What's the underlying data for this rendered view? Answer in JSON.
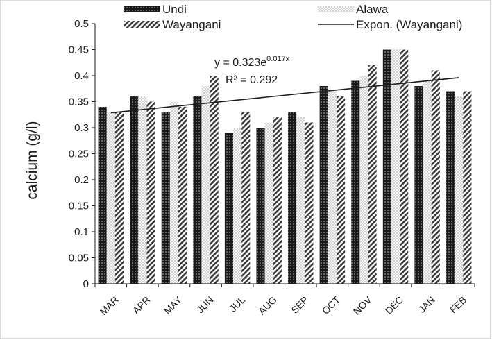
{
  "chart_data": {
    "type": "bar",
    "ylabel": "calcium (g/l)",
    "xlabel": "",
    "ylim": [
      0,
      0.5
    ],
    "yticks": [
      0,
      0.05,
      0.1,
      0.15,
      0.2,
      0.25,
      0.3,
      0.35,
      0.4,
      0.45,
      0.5
    ],
    "ytick_labels": [
      "0",
      "0.05",
      "0.1",
      "0.15",
      "0.2",
      "0.25",
      "0.3",
      "0.35",
      "0.4",
      "0.45",
      "0.5"
    ],
    "grid": false,
    "legend_position": "top",
    "categories": [
      "MAR",
      "APR",
      "MAY",
      "JUN",
      "JUL",
      "AUG",
      "SEP",
      "OCT",
      "NOV",
      "DEC",
      "JAN",
      "FEB"
    ],
    "series": [
      {
        "name": "Undi",
        "pattern": "dots",
        "color": "#1a1a1a",
        "values": [
          0.34,
          0.36,
          0.33,
          0.36,
          0.29,
          0.3,
          0.33,
          0.38,
          0.39,
          0.45,
          0.38,
          0.37
        ]
      },
      {
        "name": "Alawa",
        "pattern": "light-dots",
        "color": "#b8b8b8",
        "values": [
          0.33,
          0.36,
          0.35,
          0.38,
          0.3,
          0.31,
          0.32,
          0.37,
          0.4,
          0.45,
          0.39,
          0.36
        ]
      },
      {
        "name": "Wayangani",
        "pattern": "diagonal",
        "color": "#555555",
        "values": [
          0.33,
          0.35,
          0.34,
          0.4,
          0.33,
          0.32,
          0.31,
          0.36,
          0.42,
          0.45,
          0.41,
          0.37
        ]
      }
    ],
    "trendline": {
      "name": "Expon. (Wayangani)",
      "type": "exponential",
      "a": 0.323,
      "b": 0.017,
      "equation_prefix": "y = 0.323e",
      "equation_exponent": "0.017x",
      "r2_label": "R² = 0.292"
    }
  }
}
